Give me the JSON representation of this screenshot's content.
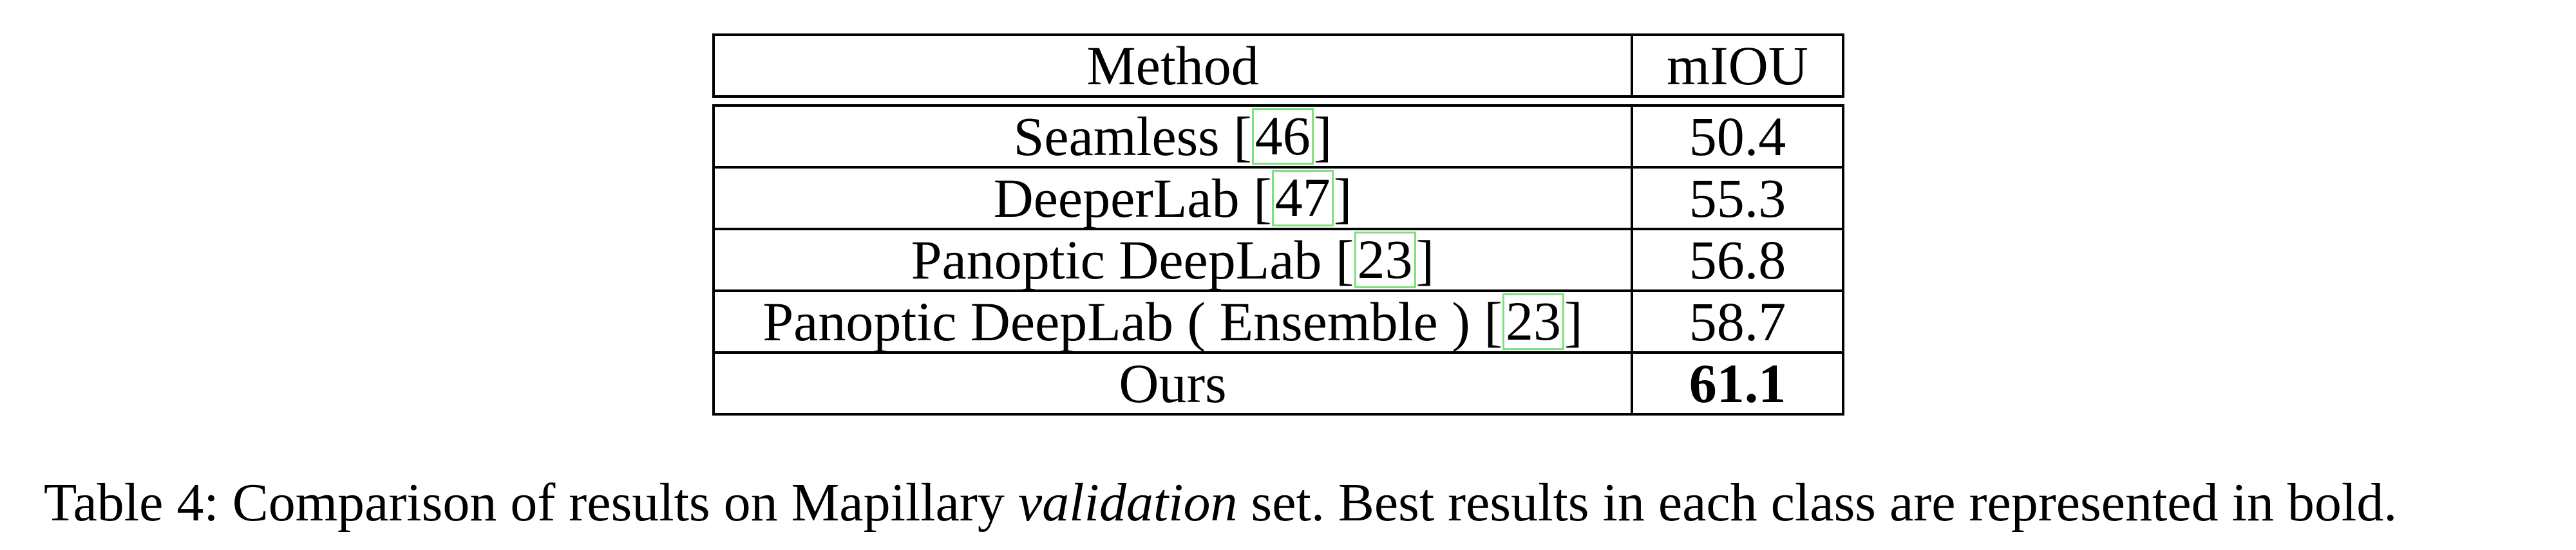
{
  "table": {
    "header": {
      "method": "Method",
      "miou": "mIOU"
    },
    "rows": [
      {
        "method": "Seamless",
        "cite": "46",
        "miou": "50.4",
        "bold": false
      },
      {
        "method": "DeeperLab",
        "cite": "47",
        "miou": "55.3",
        "bold": false
      },
      {
        "method": "Panoptic DeepLab ",
        "cite": "23",
        "miou": "56.8",
        "bold": false
      },
      {
        "method": "Panoptic DeepLab ( Ensemble ) ",
        "cite": "23",
        "miou": "58.7",
        "bold": false
      },
      {
        "method": "Ours",
        "cite": "",
        "miou": "61.1",
        "bold": true
      }
    ]
  },
  "caption": {
    "prefix": "Table 4: Comparison of results on Mapillary ",
    "emphasis": "validation",
    "suffix": " set. Best results in each class are represented in bold."
  },
  "colors": {
    "citation_border": "#7fe07f"
  }
}
